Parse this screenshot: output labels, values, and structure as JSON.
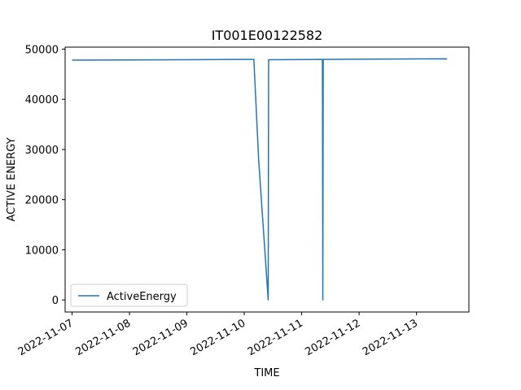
{
  "chart_data": {
    "type": "line",
    "title": "IT001E00122582",
    "xlabel": "TIME",
    "ylabel": "ACTIVE ENERGY",
    "x_ticks": [
      "2022-11-07",
      "2022-11-08",
      "2022-11-09",
      "2022-11-10",
      "2022-11-11",
      "2022-11-12",
      "2022-11-13"
    ],
    "y_ticks": [
      0,
      10000,
      20000,
      30000,
      40000,
      50000
    ],
    "ylim": [
      -2400,
      50400
    ],
    "xlim": [
      "2022-11-06 21:06",
      "2022-11-13 21:54"
    ],
    "legend": {
      "position": "lower-left",
      "entries": [
        "ActiveEnergy"
      ]
    },
    "grid": false,
    "series": [
      {
        "name": "ActiveEnergy",
        "color": "#1f77b4",
        "points": [
          [
            "2022-11-07 00:00",
            47800
          ],
          [
            "2022-11-08 00:00",
            47850
          ],
          [
            "2022-11-09 00:00",
            47900
          ],
          [
            "2022-11-10 00:00",
            47950
          ],
          [
            "2022-11-10 04:00",
            47960
          ],
          [
            "2022-11-10 06:00",
            28000
          ],
          [
            "2022-11-10 10:00",
            0
          ],
          [
            "2022-11-10 10:10",
            47900
          ],
          [
            "2022-11-11 08:40",
            47950
          ],
          [
            "2022-11-11 08:50",
            0
          ],
          [
            "2022-11-11 09:00",
            47950
          ],
          [
            "2022-11-12 00:00",
            48000
          ],
          [
            "2022-11-13 00:00",
            48050
          ],
          [
            "2022-11-13 12:30",
            48080
          ],
          [
            "2022-11-13 12:45",
            47950
          ]
        ]
      }
    ]
  }
}
